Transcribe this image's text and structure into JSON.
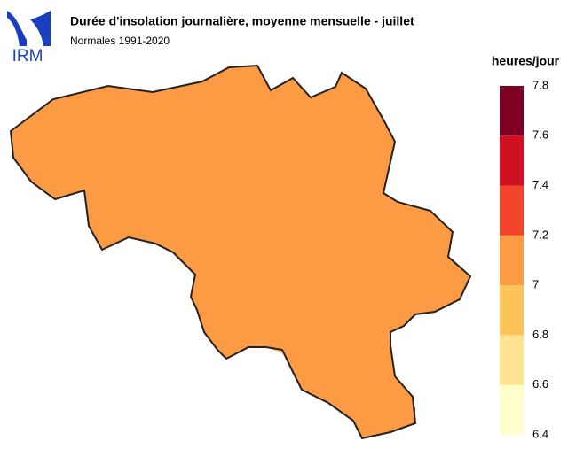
{
  "header": {
    "logo": "IRM",
    "title": "Durée d'insolation journalière, moyenne mensuelle - juillet",
    "subtitle": "Normales 1991-2020"
  },
  "legend": {
    "title": "heures/jour",
    "ticks": [
      6.4,
      6.6,
      6.8,
      7,
      7.2,
      7.4,
      7.6,
      7.8
    ],
    "colors": [
      "#ffffcc",
      "#fee391",
      "#fec45a",
      "#fd9a44",
      "#f2462c",
      "#d01020",
      "#7f0025"
    ]
  }
}
